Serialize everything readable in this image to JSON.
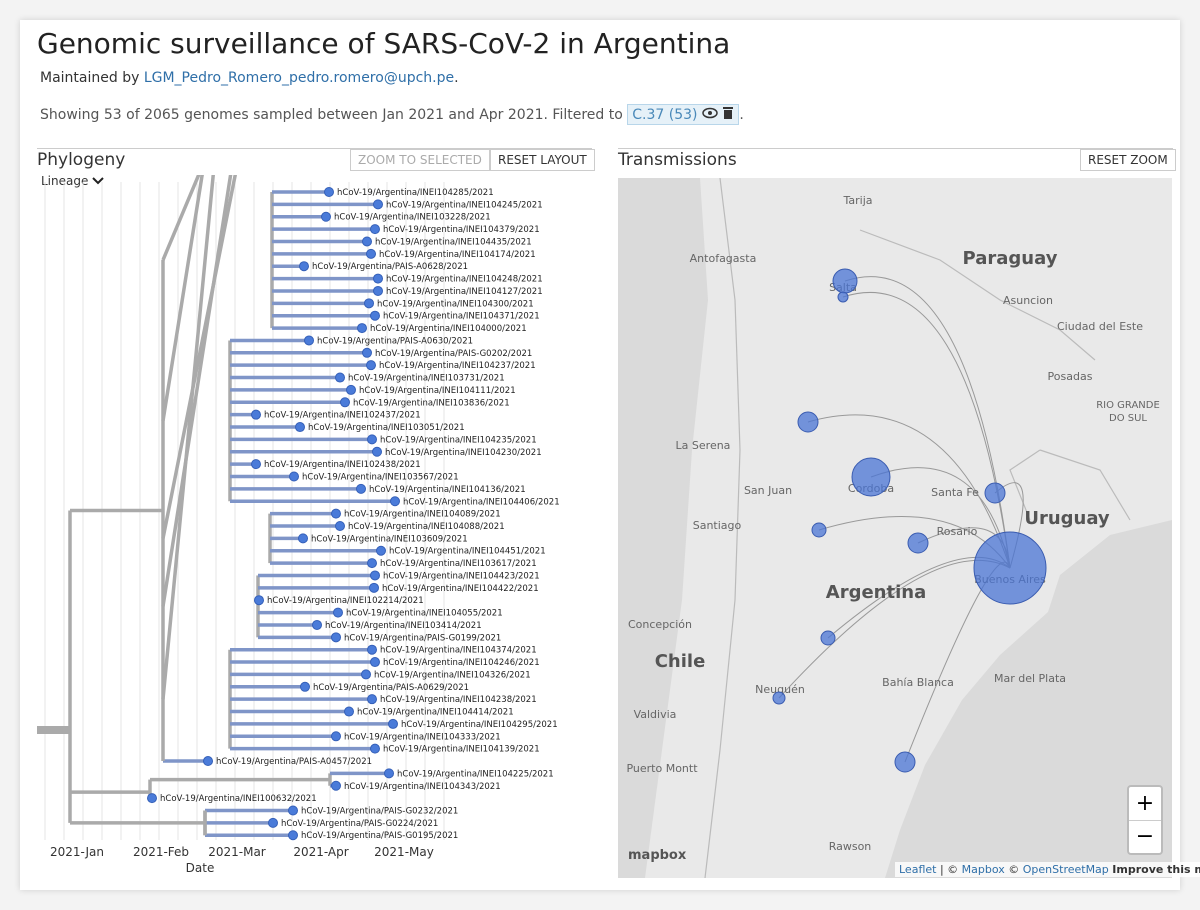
{
  "header": {
    "title": "Genomic surveillance of SARS-CoV-2 in Argentina",
    "maintained_prefix": "Maintained by",
    "maintainer": "LGM_Pedro_Romero_pedro.romero@upch.pe",
    "period": ".",
    "summary": "Showing 53 of 2065 genomes sampled between Jan 2021 and Apr 2021. Filtered to",
    "filter": "C.37 (53)"
  },
  "phylogeny": {
    "title": "Phylogeny",
    "buttons": [
      "ZOOM TO SELECTED",
      "RESET LAYOUT"
    ],
    "lineage": "Lineage",
    "tips": [
      "hCoV-19/Argentina/INEI104285/2021",
      "hCoV-19/Argentina/INEI104245/2021",
      "hCoV-19/Argentina/INEI103228/2021",
      "hCoV-19/Argentina/INEI104379/2021",
      "hCoV-19/Argentina/INEI104435/2021",
      "hCoV-19/Argentina/INEI104174/2021",
      "hCoV-19/Argentina/PAIS-A0628/2021",
      "hCoV-19/Argentina/INEI104248/2021",
      "hCoV-19/Argentina/INEI104127/2021",
      "hCoV-19/Argentina/INEI104300/2021",
      "hCoV-19/Argentina/INEI104371/2021",
      "hCoV-19/Argentina/INEI104000/2021",
      "hCoV-19/Argentina/PAIS-A0630/2021",
      "hCoV-19/Argentina/PAIS-G0202/2021",
      "hCoV-19/Argentina/INEI104237/2021",
      "hCoV-19/Argentina/INEI103731/2021",
      "hCoV-19/Argentina/INEI104111/2021",
      "hCoV-19/Argentina/INEI103836/2021",
      "hCoV-19/Argentina/INEI102437/2021",
      "hCoV-19/Argentina/INEI103051/2021",
      "hCoV-19/Argentina/INEI104235/2021",
      "hCoV-19/Argentina/INEI104230/2021",
      "hCoV-19/Argentina/INEI102438/2021",
      "hCoV-19/Argentina/INEI103567/2021",
      "hCoV-19/Argentina/INEI104136/2021",
      "hCoV-19/Argentina/INEI104406/2021",
      "hCoV-19/Argentina/INEI104089/2021",
      "hCoV-19/Argentina/INEI104088/2021",
      "hCoV-19/Argentina/INEI103609/2021",
      "hCoV-19/Argentina/INEI104451/2021",
      "hCoV-19/Argentina/INEI103617/2021",
      "hCoV-19/Argentina/INEI104423/2021",
      "hCoV-19/Argentina/INEI104422/2021",
      "hCoV-19/Argentina/INEI102214/2021",
      "hCoV-19/Argentina/INEI104055/2021",
      "hCoV-19/Argentina/INEI103414/2021",
      "hCoV-19/Argentina/PAIS-G0199/2021",
      "hCoV-19/Argentina/INEI104374/2021",
      "hCoV-19/Argentina/INEI104246/2021",
      "hCoV-19/Argentina/INEI104326/2021",
      "hCoV-19/Argentina/PAIS-A0629/2021",
      "hCoV-19/Argentina/INEI104238/2021",
      "hCoV-19/Argentina/INEI104414/2021",
      "hCoV-19/Argentina/INEI104295/2021",
      "hCoV-19/Argentina/INEI104333/2021",
      "hCoV-19/Argentina/INEI104139/2021",
      "hCoV-19/Argentina/PAIS-A0457/2021",
      "hCoV-19/Argentina/INEI104225/2021",
      "hCoV-19/Argentina/INEI104343/2021",
      "hCoV-19/Argentina/INEI100632/2021",
      "hCoV-19/Argentina/PAIS-G0232/2021",
      "hCoV-19/Argentina/PAIS-G0224/2021",
      "hCoV-19/Argentina/PAIS-G0195/2021"
    ],
    "x_ticks": [
      "2021-Jan",
      "2021-Feb",
      "2021-Mar",
      "2021-Apr",
      "2021-May"
    ],
    "x_label": "Date"
  },
  "map": {
    "title": "Transmissions",
    "button": "RESET ZOOM",
    "labels": [
      "Tarija",
      "Paraguay",
      "Antofagasta",
      "Salta",
      "Asuncion",
      "Ciudad del Este",
      "Posadas",
      "RIO GRANDE",
      "DO SUL",
      "La Serena",
      "San Juan",
      "Cordoba",
      "Santa Fe",
      "Uruguay",
      "Santiago",
      "Rosario",
      "Buenos Aires",
      "Argentina",
      "Concepción",
      "Chile",
      "Valdivia",
      "Neuquén",
      "Bahía Blanca",
      "Mar del Plata",
      "Puerto Montt",
      "Rawson"
    ],
    "zoom_in": "+",
    "zoom_out": "−",
    "logo": "mapbox",
    "attribution": [
      "Leaflet",
      "| ©",
      "Mapbox",
      "©",
      "OpenStreetMap",
      "Improve this map"
    ]
  }
}
